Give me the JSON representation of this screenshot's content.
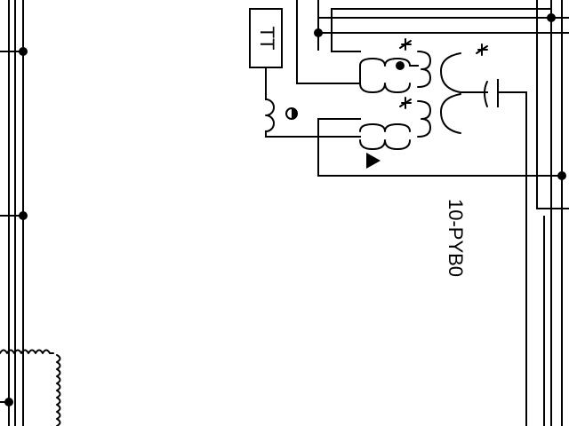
{
  "diagram": {
    "component_label": "10-PYB0",
    "transformer_label": "TT"
  }
}
